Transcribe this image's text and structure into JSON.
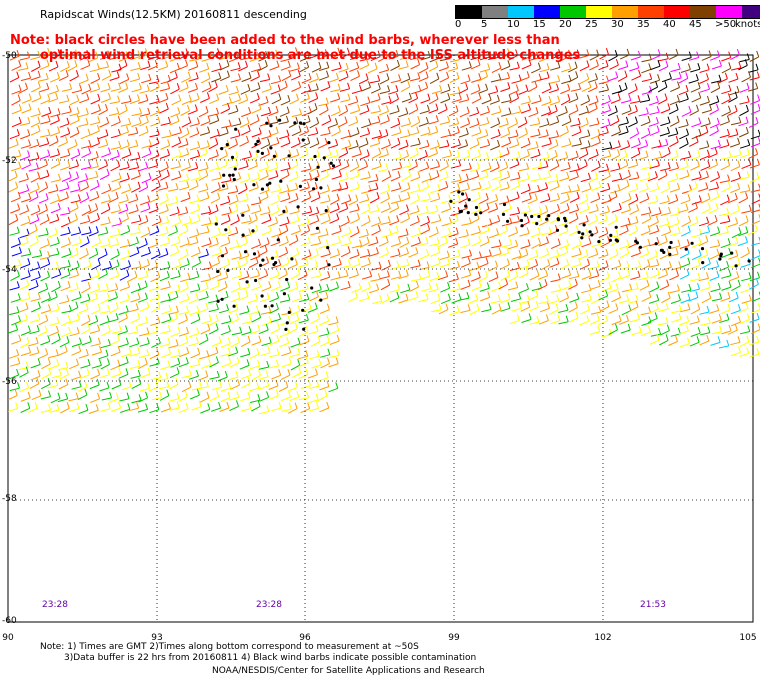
{
  "header": {
    "title": "Rapidscat Winds(12.5KM) 20160811 descending",
    "note_line1": "Note: black circles have been added to the wind barbs, wherever less than",
    "note_line2": "optimal wind retrieval conditions are met due to the ISS altitude changes"
  },
  "colorbar": {
    "labels": [
      "0",
      "5",
      "10",
      "15",
      "20",
      "25",
      "30",
      "35",
      "40",
      "45",
      ">50"
    ],
    "units": "knots",
    "colors": [
      "#000000",
      "#808080",
      "#00c8ff",
      "#0000ff",
      "#00c800",
      "#ffff00",
      "#ffa000",
      "#ff4000",
      "#ff0000",
      "#804000",
      "#ff00ff",
      "#400080"
    ]
  },
  "axes": {
    "lat_labels": [
      "-50",
      "-52",
      "-54",
      "-56",
      "-58",
      "-60"
    ],
    "lon_labels": [
      "90",
      "93",
      "96",
      "99",
      "102",
      "105"
    ]
  },
  "times": [
    "23:28",
    "23:28",
    "21:53"
  ],
  "footer": {
    "line1": "Note: 1) Times are GMT 2)Times along bottom correspond to measurement at ~50S",
    "line2": "3)Data buffer is 22 hrs from 20160811 4) Black wind barbs indicate possible contamination",
    "line3": "NOAA/NESDIS/Center for Satellite Applications and Research"
  }
}
